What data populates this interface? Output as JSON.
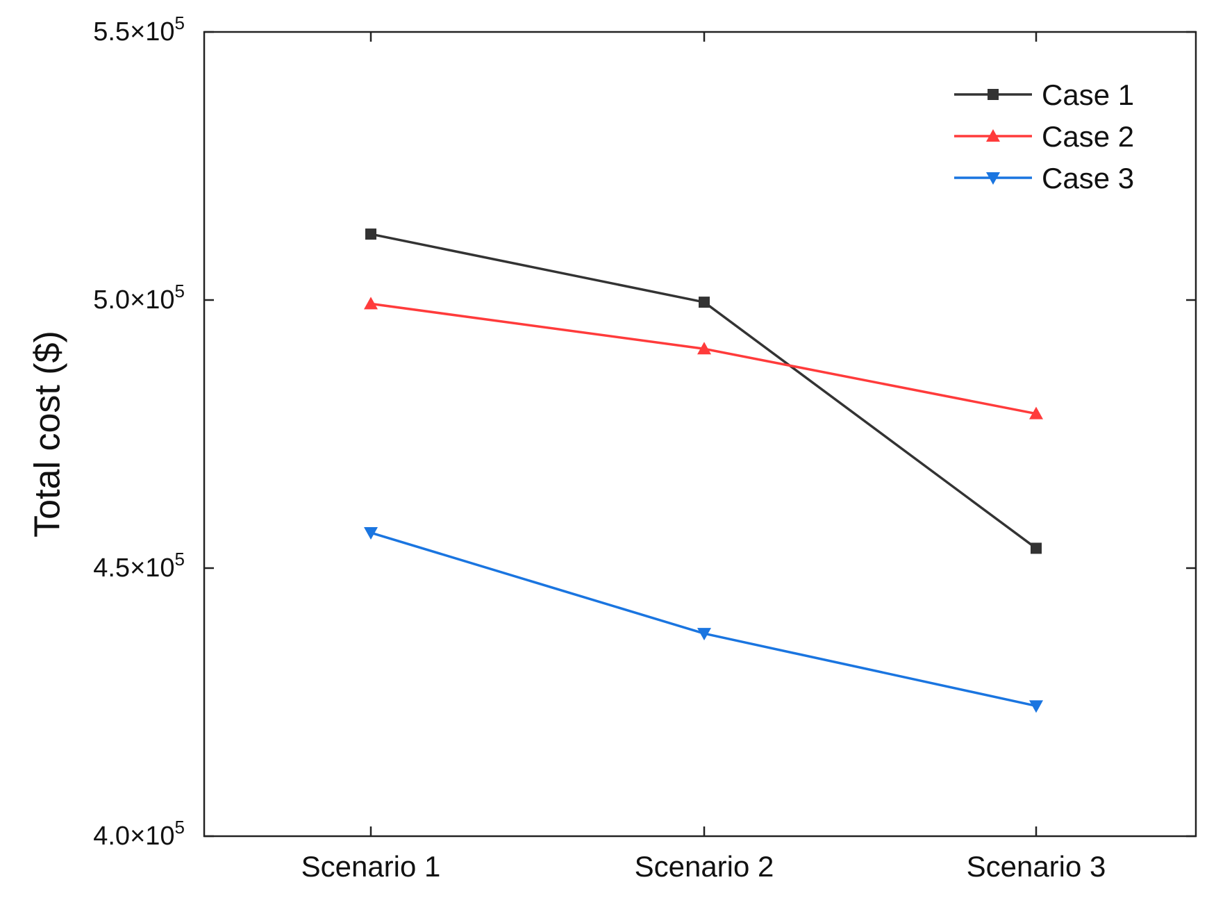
{
  "chart_data": {
    "type": "line",
    "title": "",
    "xlabel": "",
    "ylabel": "Total cost ($)",
    "categories": [
      "Scenario 1",
      "Scenario 2",
      "Scenario 3"
    ],
    "ylim": [
      400000,
      550000
    ],
    "yticks": [
      {
        "value": 400000,
        "mantissa": "4.0",
        "base": "×10",
        "exp": "5"
      },
      {
        "value": 450000,
        "mantissa": "4.5",
        "base": "×10",
        "exp": "5"
      },
      {
        "value": 500000,
        "mantissa": "5.0",
        "base": "×10",
        "exp": "5"
      },
      {
        "value": 550000,
        "mantissa": "5.5",
        "base": "×10",
        "exp": "5"
      }
    ],
    "grid": false,
    "legend_position": "top-right",
    "series": [
      {
        "name": "Case 1",
        "color": "#333333",
        "marker": "square",
        "values": [
          512300,
          499600,
          453700
        ]
      },
      {
        "name": "Case 2",
        "color": "#ff3b3b",
        "marker": "triangle-up",
        "values": [
          499300,
          490900,
          478800
        ]
      },
      {
        "name": "Case 3",
        "color": "#1a75e0",
        "marker": "triangle-down",
        "values": [
          456600,
          437800,
          424300
        ]
      }
    ]
  }
}
